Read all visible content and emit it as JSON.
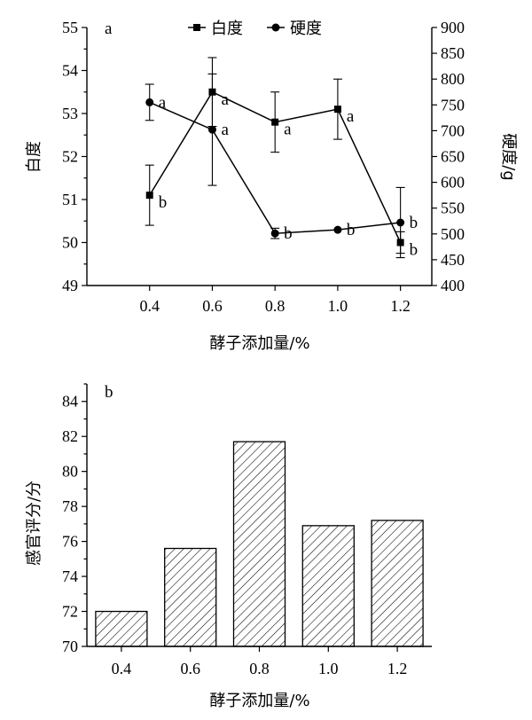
{
  "chart_data": [
    {
      "type": "line",
      "panel_label": "a",
      "xlabel": "酵子添加量/%",
      "ylabel_left": "白度",
      "ylabel_right": "硬度/g",
      "x": [
        0.4,
        0.6,
        0.8,
        1.0,
        1.2
      ],
      "x_tick_labels": [
        "0.4",
        "0.6",
        "0.8",
        "1.0",
        "1.2"
      ],
      "xlim": [
        0.2,
        1.3
      ],
      "ylim_left": [
        49,
        55
      ],
      "left_ticks": [
        49,
        50,
        51,
        52,
        53,
        54,
        55
      ],
      "ylim_right": [
        400,
        900
      ],
      "right_ticks": [
        400,
        450,
        500,
        550,
        600,
        650,
        700,
        750,
        800,
        850,
        900
      ],
      "legend_position": "top-center",
      "series": [
        {
          "name": "白度",
          "axis": "left",
          "marker": "square",
          "values": [
            51.1,
            53.5,
            52.8,
            53.1,
            50.0
          ],
          "errors": [
            0.7,
            0.8,
            0.7,
            0.7,
            0.25
          ],
          "letters": [
            "b",
            "a",
            "a",
            "a",
            "b"
          ]
        },
        {
          "name": "硬度",
          "axis": "right",
          "marker": "circle",
          "values": [
            755,
            702,
            501,
            508,
            522
          ],
          "errors": [
            35,
            108,
            10,
            0,
            68
          ],
          "letters": [
            "a",
            "a",
            "b",
            "b",
            "b"
          ]
        }
      ]
    },
    {
      "type": "bar",
      "panel_label": "b",
      "xlabel": "酵子添加量/%",
      "ylabel": "感官评分/分",
      "categories": [
        "0.4",
        "0.6",
        "0.8",
        "1.0",
        "1.2"
      ],
      "values": [
        72.0,
        75.6,
        81.7,
        76.9,
        77.2
      ],
      "ylim": [
        70,
        85
      ],
      "y_ticks": [
        70,
        72,
        74,
        76,
        78,
        80,
        82,
        84
      ],
      "bar_fill": "diagonal-hatch"
    }
  ]
}
